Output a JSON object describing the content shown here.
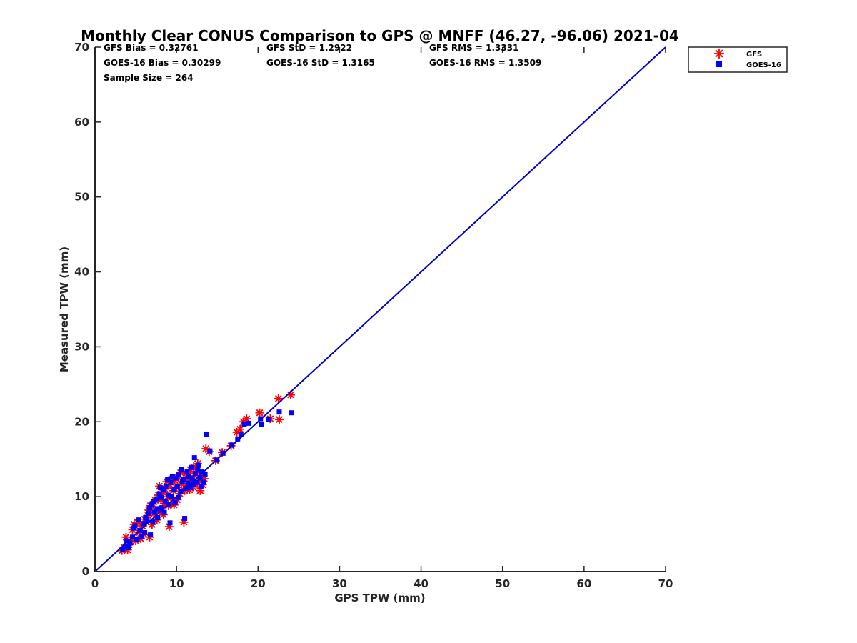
{
  "chart_data": {
    "type": "scatter",
    "title": "Monthly Clear CONUS Comparison to GPS @ MNFF (46.27, -96.06) 2021-04",
    "xlabel": "GPS TPW (mm)",
    "ylabel": "Measured TPW (mm)",
    "xlim": [
      0,
      70
    ],
    "ylim": [
      0,
      70
    ],
    "x_ticks": [
      "0",
      "10",
      "20",
      "30",
      "40",
      "50",
      "60",
      "70"
    ],
    "y_ticks": [
      "0",
      "10",
      "20",
      "30",
      "40",
      "50",
      "60",
      "70"
    ],
    "grid": false,
    "legend_position": "top-right, outside plot",
    "stats": [
      "GFS Bias = 0.32761",
      "GFS StD = 1.2922",
      "GFS RMS = 1.3331",
      "GOES-16 Bias = 0.30299",
      "GOES-16 StD = 1.3165",
      "GOES-16 RMS = 1.3509",
      "Sample Size = 264"
    ],
    "reference_line": {
      "x": [
        0,
        70
      ],
      "y": [
        0,
        70
      ],
      "color": "#0000cc"
    },
    "series": [
      {
        "name": "GFS",
        "marker": "asterisk",
        "color": "#ff0000",
        "points": [
          [
            3.3,
            2.8
          ],
          [
            3.6,
            3.2
          ],
          [
            3.8,
            4.6
          ],
          [
            4.0,
            2.9
          ],
          [
            4.2,
            3.6
          ],
          [
            4.5,
            4.3
          ],
          [
            4.6,
            5.6
          ],
          [
            4.8,
            6.3
          ],
          [
            5.0,
            4.1
          ],
          [
            5.2,
            6.6
          ],
          [
            5.4,
            5.2
          ],
          [
            5.6,
            4.4
          ],
          [
            5.8,
            6.1
          ],
          [
            6.0,
            5.0
          ],
          [
            6.1,
            7.0
          ],
          [
            6.3,
            6.6
          ],
          [
            6.5,
            7.5
          ],
          [
            6.6,
            8.2
          ],
          [
            6.7,
            4.6
          ],
          [
            6.8,
            8.8
          ],
          [
            7.0,
            6.3
          ],
          [
            7.1,
            9.0
          ],
          [
            7.2,
            7.7
          ],
          [
            7.4,
            9.5
          ],
          [
            7.5,
            8.1
          ],
          [
            7.6,
            6.9
          ],
          [
            7.8,
            10.2
          ],
          [
            7.9,
            11.4
          ],
          [
            8.0,
            8.3
          ],
          [
            8.1,
            9.6
          ],
          [
            8.3,
            10.6
          ],
          [
            8.4,
            7.6
          ],
          [
            8.5,
            9.1
          ],
          [
            8.6,
            11.0
          ],
          [
            8.8,
            12.0
          ],
          [
            8.9,
            10.0
          ],
          [
            9.0,
            8.8
          ],
          [
            9.1,
            6.0
          ],
          [
            9.2,
            11.6
          ],
          [
            9.3,
            9.8
          ],
          [
            9.4,
            12.4
          ],
          [
            9.6,
            10.8
          ],
          [
            9.7,
            8.9
          ],
          [
            9.8,
            12.2
          ],
          [
            10.0,
            11.2
          ],
          [
            10.1,
            9.6
          ],
          [
            10.2,
            12.6
          ],
          [
            10.4,
            10.4
          ],
          [
            10.5,
            13.2
          ],
          [
            10.6,
            11.7
          ],
          [
            10.8,
            12.0
          ],
          [
            10.9,
            6.6
          ],
          [
            11.0,
            10.8
          ],
          [
            11.2,
            13.1
          ],
          [
            11.3,
            11.5
          ],
          [
            11.4,
            12.4
          ],
          [
            11.6,
            10.9
          ],
          [
            11.7,
            13.6
          ],
          [
            11.8,
            12.1
          ],
          [
            12.0,
            11.3
          ],
          [
            12.1,
            14.0
          ],
          [
            12.2,
            12.8
          ],
          [
            12.4,
            11.6
          ],
          [
            12.5,
            13.4
          ],
          [
            12.6,
            14.4
          ],
          [
            12.8,
            12.2
          ],
          [
            12.9,
            10.8
          ],
          [
            13.0,
            13.0
          ],
          [
            13.2,
            11.6
          ],
          [
            13.4,
            12.4
          ],
          [
            13.6,
            16.4
          ],
          [
            14.0,
            16.0
          ],
          [
            14.8,
            14.8
          ],
          [
            15.6,
            15.9
          ],
          [
            16.7,
            16.8
          ],
          [
            17.4,
            18.6
          ],
          [
            17.8,
            19.0
          ],
          [
            18.2,
            20.0
          ],
          [
            18.6,
            20.4
          ],
          [
            20.2,
            21.2
          ],
          [
            21.5,
            20.4
          ],
          [
            22.5,
            23.1
          ],
          [
            22.6,
            20.3
          ],
          [
            24.0,
            23.6
          ]
        ]
      },
      {
        "name": "GOES-16",
        "marker": "square",
        "color": "#0000ff",
        "points": [
          [
            3.4,
            3.0
          ],
          [
            3.7,
            3.4
          ],
          [
            3.9,
            4.1
          ],
          [
            4.1,
            3.2
          ],
          [
            4.3,
            3.8
          ],
          [
            4.6,
            4.6
          ],
          [
            4.7,
            5.8
          ],
          [
            4.9,
            6.1
          ],
          [
            5.1,
            4.3
          ],
          [
            5.3,
            6.9
          ],
          [
            5.5,
            5.5
          ],
          [
            5.7,
            4.7
          ],
          [
            5.9,
            6.4
          ],
          [
            6.1,
            5.2
          ],
          [
            6.2,
            7.2
          ],
          [
            6.4,
            6.8
          ],
          [
            6.6,
            7.8
          ],
          [
            6.7,
            8.5
          ],
          [
            6.8,
            4.9
          ],
          [
            6.9,
            8.9
          ],
          [
            7.1,
            6.6
          ],
          [
            7.2,
            9.3
          ],
          [
            7.3,
            7.9
          ],
          [
            7.5,
            9.7
          ],
          [
            7.6,
            8.4
          ],
          [
            7.7,
            7.2
          ],
          [
            7.9,
            10.4
          ],
          [
            8.0,
            11.2
          ],
          [
            8.1,
            8.5
          ],
          [
            8.2,
            9.9
          ],
          [
            8.4,
            10.9
          ],
          [
            8.5,
            7.9
          ],
          [
            8.6,
            9.4
          ],
          [
            8.7,
            11.3
          ],
          [
            8.9,
            12.3
          ],
          [
            9.0,
            10.2
          ],
          [
            9.1,
            9.0
          ],
          [
            9.2,
            6.5
          ],
          [
            9.3,
            11.9
          ],
          [
            9.4,
            10.0
          ],
          [
            9.5,
            12.7
          ],
          [
            9.7,
            11.0
          ],
          [
            9.8,
            9.2
          ],
          [
            9.9,
            12.5
          ],
          [
            10.1,
            11.4
          ],
          [
            10.2,
            9.9
          ],
          [
            10.3,
            12.9
          ],
          [
            10.5,
            10.7
          ],
          [
            10.6,
            13.6
          ],
          [
            10.7,
            12.0
          ],
          [
            10.9,
            12.3
          ],
          [
            11.0,
            7.1
          ],
          [
            11.1,
            11.1
          ],
          [
            11.3,
            13.3
          ],
          [
            11.4,
            11.8
          ],
          [
            11.5,
            12.7
          ],
          [
            11.7,
            11.2
          ],
          [
            11.8,
            13.9
          ],
          [
            11.9,
            12.4
          ],
          [
            12.1,
            11.6
          ],
          [
            12.2,
            15.2
          ],
          [
            12.3,
            13.1
          ],
          [
            12.5,
            11.9
          ],
          [
            12.6,
            13.7
          ],
          [
            12.7,
            14.2
          ],
          [
            12.9,
            12.5
          ],
          [
            13.0,
            11.4
          ],
          [
            13.1,
            13.3
          ],
          [
            13.3,
            11.9
          ],
          [
            13.5,
            13.0
          ],
          [
            13.7,
            18.3
          ],
          [
            14.1,
            16.1
          ],
          [
            14.9,
            14.9
          ],
          [
            15.7,
            15.8
          ],
          [
            16.8,
            16.9
          ],
          [
            17.5,
            17.7
          ],
          [
            17.9,
            18.3
          ],
          [
            18.3,
            19.6
          ],
          [
            18.8,
            19.8
          ],
          [
            20.3,
            20.4
          ],
          [
            21.3,
            20.3
          ],
          [
            22.6,
            21.3
          ],
          [
            20.4,
            19.6
          ],
          [
            24.1,
            21.2
          ]
        ]
      }
    ]
  }
}
